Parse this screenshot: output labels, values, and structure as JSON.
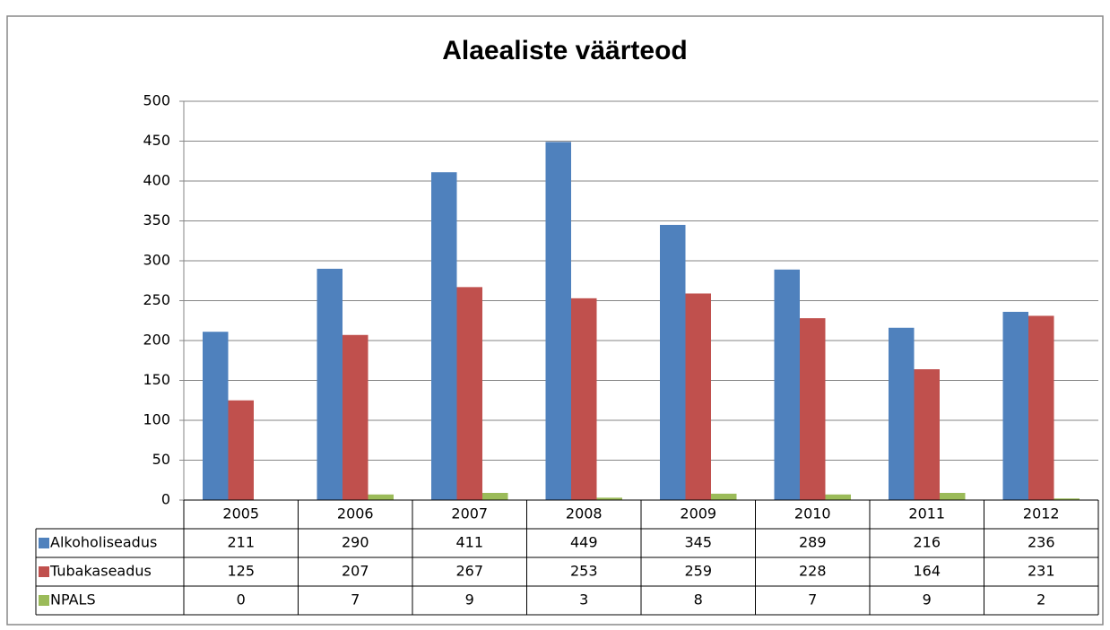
{
  "chart_data": {
    "type": "bar",
    "title": "Alaealiste väärteod",
    "categories": [
      "2005",
      "2006",
      "2007",
      "2008",
      "2009",
      "2010",
      "2011",
      "2012"
    ],
    "series": [
      {
        "name": "Alkoholiseadus",
        "color": "#4f81bd",
        "values": [
          211,
          290,
          411,
          449,
          345,
          289,
          216,
          236
        ]
      },
      {
        "name": "Tubakaseadus",
        "color": "#c0504d",
        "values": [
          125,
          207,
          267,
          253,
          259,
          228,
          164,
          231
        ]
      },
      {
        "name": "NPALS",
        "color": "#9bbb59",
        "values": [
          0,
          7,
          9,
          3,
          8,
          7,
          9,
          2
        ]
      }
    ],
    "ylim": [
      0,
      500
    ],
    "yticks": [
      0,
      50,
      100,
      150,
      200,
      250,
      300,
      350,
      400,
      450,
      500
    ],
    "grid": true
  }
}
